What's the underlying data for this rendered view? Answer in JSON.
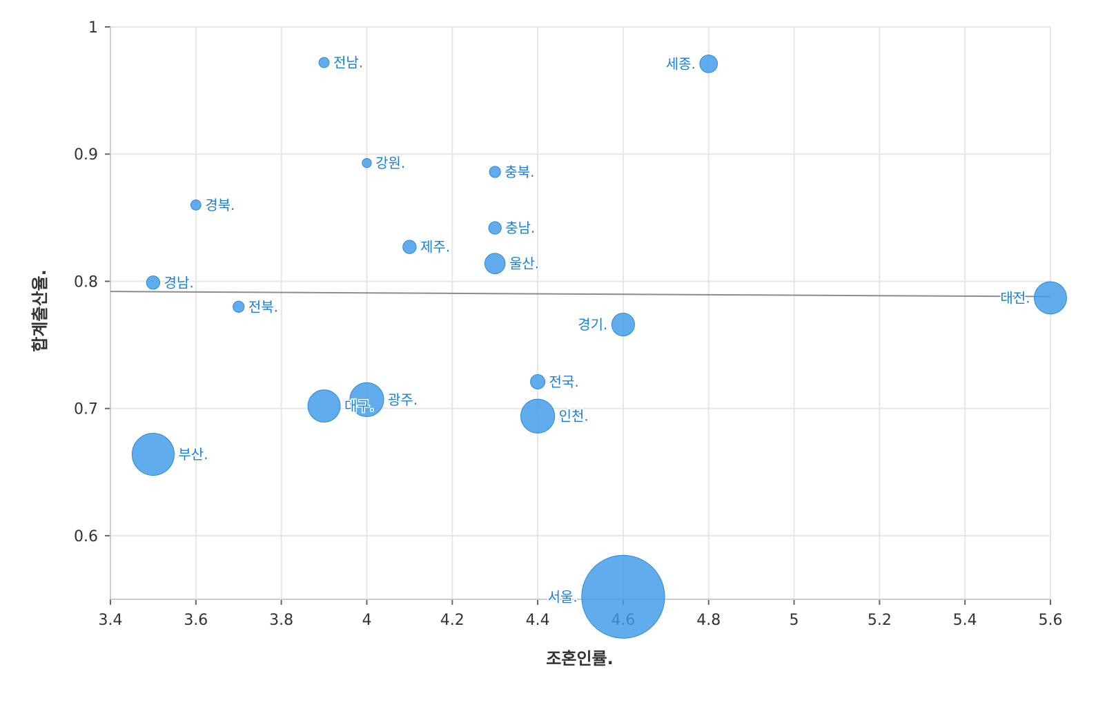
{
  "chart_data": {
    "type": "scatter",
    "xlabel": "조혼인률.",
    "ylabel": "합계출산율.",
    "xlim": [
      3.4,
      5.6
    ],
    "ylim": [
      0.55,
      1.0
    ],
    "x_ticks": [
      "3.4",
      "3.6",
      "3.8",
      "4",
      "4.2",
      "4.4",
      "4.6",
      "4.8",
      "5",
      "5.2",
      "5.4",
      "5.6"
    ],
    "y_ticks": [
      "0.6",
      "0.7",
      "0.8",
      "0.9",
      "1"
    ],
    "grid": true,
    "bubble_color": "#3d9ae8",
    "label_color": "#1a7fd6",
    "trendline_color": "#8c8c8c",
    "trendline": {
      "x": [
        3.4,
        5.6
      ],
      "y": [
        0.792,
        0.788
      ]
    },
    "points": [
      {
        "label": "전남.",
        "x": 3.9,
        "y": 0.972,
        "size": 1.0,
        "label_side": "right"
      },
      {
        "label": "세종.",
        "x": 4.8,
        "y": 0.971,
        "size": 3.0,
        "label_side": "left"
      },
      {
        "label": "강원.",
        "x": 4.0,
        "y": 0.893,
        "size": 0.8,
        "label_side": "right"
      },
      {
        "label": "충북.",
        "x": 4.3,
        "y": 0.886,
        "size": 1.2,
        "label_side": "right"
      },
      {
        "label": "경북.",
        "x": 3.6,
        "y": 0.86,
        "size": 1.0,
        "label_side": "right"
      },
      {
        "label": "충남.",
        "x": 4.3,
        "y": 0.842,
        "size": 1.5,
        "label_side": "right"
      },
      {
        "label": "제주.",
        "x": 4.1,
        "y": 0.827,
        "size": 1.7,
        "label_side": "right"
      },
      {
        "label": "울산.",
        "x": 4.3,
        "y": 0.814,
        "size": 4.0,
        "label_side": "right"
      },
      {
        "label": "경남.",
        "x": 3.5,
        "y": 0.799,
        "size": 1.7,
        "label_side": "right"
      },
      {
        "label": "전북.",
        "x": 3.7,
        "y": 0.78,
        "size": 1.2,
        "label_side": "right"
      },
      {
        "label": "대전.",
        "x": 5.6,
        "y": 0.787,
        "size": 10.0,
        "label_side": "left"
      },
      {
        "label": "경기.",
        "x": 4.6,
        "y": 0.766,
        "size": 5.0,
        "label_side": "left"
      },
      {
        "label": "전국.",
        "x": 4.4,
        "y": 0.721,
        "size": 2.0,
        "label_side": "right"
      },
      {
        "label": "광주.",
        "x": 4.0,
        "y": 0.707,
        "size": 11.0,
        "label_side": "right"
      },
      {
        "label": "대구.",
        "x": 3.9,
        "y": 0.702,
        "size": 10.0,
        "label_side": "right"
      },
      {
        "label": "인천.",
        "x": 4.4,
        "y": 0.694,
        "size": 11.0,
        "label_side": "right"
      },
      {
        "label": "부산.",
        "x": 3.5,
        "y": 0.664,
        "size": 17.0,
        "label_side": "right"
      },
      {
        "label": "서울.",
        "x": 4.6,
        "y": 0.552,
        "size": 66.0,
        "label_side": "left"
      }
    ]
  }
}
